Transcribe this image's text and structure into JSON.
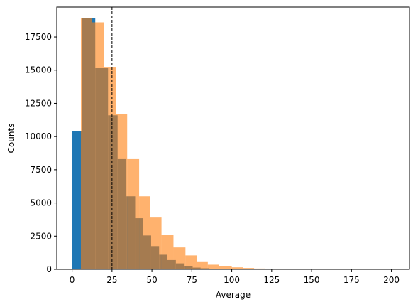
{
  "chart_data": {
    "type": "histogram",
    "title": "",
    "xlabel": "Average",
    "ylabel": "Counts",
    "xlim": [
      -9.6,
      211.3
    ],
    "ylim": [
      0,
      19750
    ],
    "x_ticks": [
      0,
      25,
      50,
      75,
      100,
      125,
      150,
      175,
      200
    ],
    "y_ticks": [
      0,
      2500,
      5000,
      7500,
      10000,
      12500,
      15000,
      17500
    ],
    "grid": false,
    "legend": null,
    "vline": {
      "x": 25,
      "style": "dashed",
      "color": "#000000"
    },
    "series": [
      {
        "color": "#1f77b4",
        "opacity": 1.0,
        "bins": [
          [
            0,
            6,
            10400
          ],
          [
            6,
            14.5,
            18900
          ],
          [
            14.5,
            22.5,
            15200
          ],
          [
            22.5,
            28.5,
            11600
          ],
          [
            28.5,
            34,
            8300
          ],
          [
            34,
            39.5,
            5500
          ],
          [
            39.5,
            44.5,
            3850
          ],
          [
            44.5,
            49.5,
            2550
          ],
          [
            49.5,
            54.5,
            1750
          ],
          [
            54.5,
            59.5,
            1100
          ],
          [
            59.5,
            65,
            700
          ],
          [
            65,
            70,
            450
          ],
          [
            70,
            75.5,
            260
          ],
          [
            75.5,
            80.5,
            130
          ],
          [
            80.5,
            86,
            80
          ],
          [
            86,
            91,
            40
          ],
          [
            91,
            96.5,
            20
          ],
          [
            96.5,
            102,
            10
          ]
        ]
      },
      {
        "color": "#ff7f0e",
        "opacity": 0.6,
        "bins": [
          [
            5.5,
            12.5,
            18900
          ],
          [
            12.5,
            20,
            18600
          ],
          [
            20,
            27.5,
            15250
          ],
          [
            27.5,
            34.5,
            11700
          ],
          [
            34.5,
            42,
            8300
          ],
          [
            42,
            49,
            5500
          ],
          [
            49,
            56,
            3900
          ],
          [
            56,
            63.5,
            2600
          ],
          [
            63.5,
            71,
            1650
          ],
          [
            71,
            78,
            1050
          ],
          [
            78,
            85,
            600
          ],
          [
            85,
            92,
            350
          ],
          [
            92,
            100,
            250
          ],
          [
            100,
            107,
            150
          ],
          [
            107,
            114,
            100
          ],
          [
            114,
            121,
            60
          ],
          [
            121,
            128,
            40
          ],
          [
            128,
            135,
            25
          ],
          [
            135,
            142,
            15
          ],
          [
            142,
            149,
            10
          ],
          [
            149,
            160,
            5
          ],
          [
            160,
            200,
            3
          ]
        ]
      }
    ]
  }
}
